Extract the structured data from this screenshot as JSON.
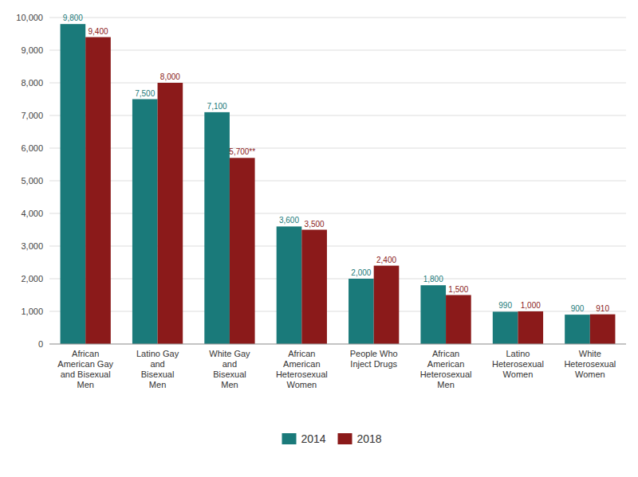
{
  "chart_data": {
    "type": "bar",
    "categories": [
      "African\nAmerican Gay\nand Bisexual\nMen",
      "Latino Gay\nand\nBisexual\nMen",
      "White Gay\nand\nBisexual\nMen",
      "African\nAmerican\nHeterosexual\nWomen",
      "People Who\nInject Drugs",
      "African\nAmerican\nHeterosexual\nMen",
      "Latino\nHeterosexual\nWomen",
      "White\nHeterosexual\nWomen"
    ],
    "series": [
      {
        "name": "2014",
        "color": "#1a7a7a",
        "values": [
          9800,
          7500,
          7100,
          3600,
          2000,
          1800,
          990,
          900
        ],
        "value_labels": [
          "9,800",
          "7,500",
          "7,100",
          "3,600",
          "2,000",
          "1,800",
          "990",
          "900"
        ]
      },
      {
        "name": "2018",
        "color": "#8b1a1a",
        "values": [
          9400,
          8000,
          5700,
          3500,
          2400,
          1500,
          1000,
          910
        ],
        "value_labels": [
          "9,400",
          "8,000",
          "5,700**",
          "3,500",
          "2,400",
          "1,500",
          "1,000",
          "910"
        ]
      }
    ],
    "ylim": [
      0,
      10000
    ],
    "yticks": [
      0,
      {
        "value": 1000,
        "label": "1,000"
      },
      {
        "value": 2000,
        "label": "2,000"
      },
      {
        "value": 3000,
        "label": "3,000"
      },
      {
        "value": 4000,
        "label": "4,000"
      },
      {
        "value": 5000,
        "label": "5,000"
      },
      {
        "value": 6000,
        "label": "6,000"
      },
      {
        "value": 7000,
        "label": "7,000"
      },
      {
        "value": 8000,
        "label": "8,000"
      },
      {
        "value": 9000,
        "label": "9,000"
      },
      {
        "value": 10000,
        "label": "10,000"
      }
    ],
    "grid": true,
    "data_labels": true,
    "legend": "bottom"
  }
}
